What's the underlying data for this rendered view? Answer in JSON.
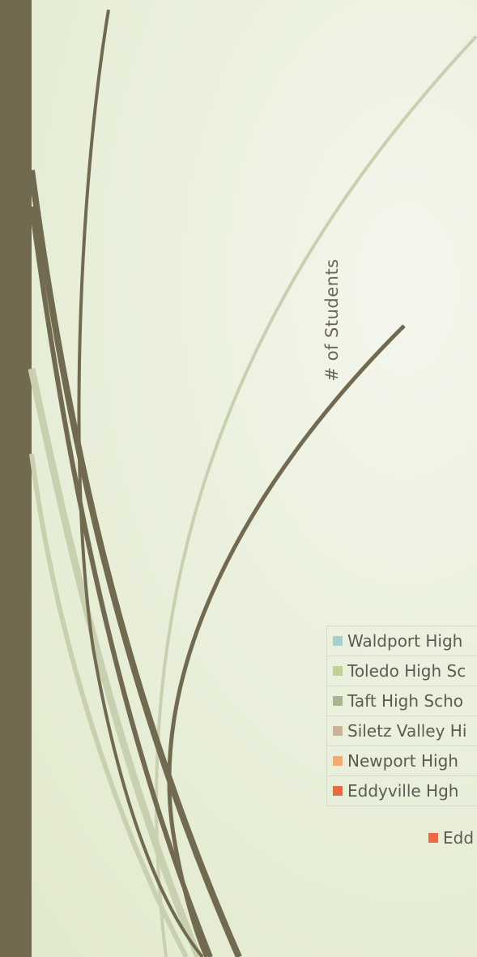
{
  "chart_data": {
    "type": "bar",
    "ylabel": "# of Students",
    "series": [
      {
        "name": "Waldport High",
        "color": "#a9cfcc"
      },
      {
        "name": "Toledo High Sc",
        "color": "#bfd195"
      },
      {
        "name": "Taft High Scho",
        "color": "#a6b58f"
      },
      {
        "name": "Siletz Valley Hi",
        "color": "#c9b49a"
      },
      {
        "name": "Newport High",
        "color": "#f2ad6e"
      },
      {
        "name": "Eddyville Hgh",
        "color": "#ea6a45"
      }
    ],
    "legend": [
      {
        "label": "Edd",
        "color": "#ea6a45"
      }
    ]
  },
  "colors": {
    "sidebar": "#716950",
    "stroke": "#716950",
    "stroke_light": "#c9d0b0"
  }
}
